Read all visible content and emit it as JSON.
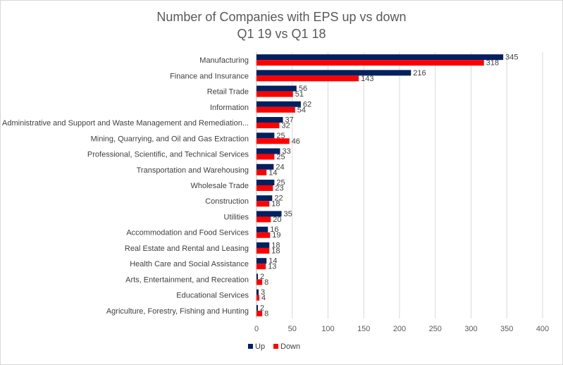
{
  "chart_data": {
    "type": "bar",
    "orientation": "horizontal",
    "title_line1": "Number of Companies with EPS up vs down",
    "title_line2": "Q1 19 vs Q1 18",
    "xlabel": "",
    "ylabel": "",
    "xlim": [
      0,
      400
    ],
    "ticks": [
      0,
      50,
      100,
      150,
      200,
      250,
      300,
      350,
      400
    ],
    "grid": true,
    "legend_position": "bottom",
    "categories": [
      "Manufacturing",
      "Finance and Insurance",
      "Retail Trade",
      "Information",
      "Administrative and Support and Waste Management and Remediation...",
      "Mining, Quarrying, and Oil and Gas Extraction",
      "Professional, Scientific, and Technical Services",
      "Transportation and Warehousing",
      "Wholesale Trade",
      "Construction",
      "Utilities",
      "Accommodation and Food Services",
      "Real Estate and Rental and Leasing",
      "Health Care and Social Assistance",
      "Arts, Entertainment, and Recreation",
      "Educational Services",
      "Agriculture, Forestry, Fishing and Hunting"
    ],
    "series": [
      {
        "name": "Up",
        "color": "#002060",
        "values": [
          345,
          216,
          56,
          62,
          37,
          25,
          33,
          24,
          25,
          22,
          35,
          16,
          18,
          14,
          2,
          3,
          2
        ]
      },
      {
        "name": "Down",
        "color": "#ff0000",
        "values": [
          318,
          143,
          51,
          54,
          32,
          46,
          25,
          14,
          23,
          18,
          20,
          19,
          18,
          13,
          8,
          4,
          8
        ]
      }
    ]
  }
}
